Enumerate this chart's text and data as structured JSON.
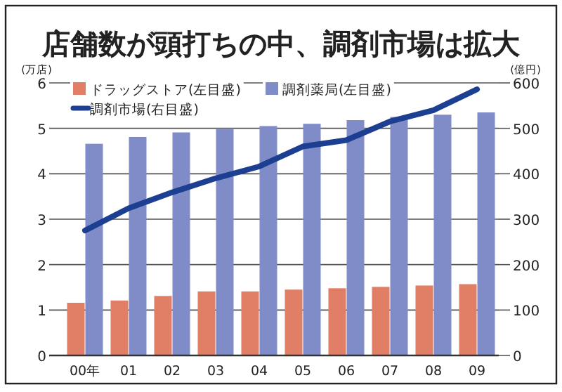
{
  "chart_data": {
    "type": "bar",
    "title": "店舗数が頭打ちの中、調剤市場は拡大",
    "ylabel": "(万店)",
    "y2label": "(億円)",
    "categories": [
      "00年",
      "01",
      "02",
      "03",
      "04",
      "05",
      "06",
      "07",
      "08",
      "09"
    ],
    "series": [
      {
        "name": "ドラッグストア(左目盛)",
        "color": "#e07f66",
        "values": [
          1.16,
          1.21,
          1.31,
          1.41,
          1.41,
          1.45,
          1.48,
          1.51,
          1.54,
          1.57
        ]
      },
      {
        "name": "調剤薬局(左目盛)",
        "color": "#7f8cc7",
        "values": [
          4.66,
          4.81,
          4.91,
          4.98,
          5.05,
          5.1,
          5.18,
          5.25,
          5.3,
          5.35
        ]
      },
      {
        "name": "調剤市場(右目盛)",
        "type": "line",
        "axis": "y2",
        "color": "#1d3f91",
        "values": [
          275,
          324,
          359,
          390,
          416,
          460,
          474,
          515,
          540,
          586
        ]
      }
    ],
    "ylim": [
      0,
      6
    ],
    "yticks": [
      0,
      1,
      2,
      3,
      4,
      5,
      6
    ],
    "y2lim": [
      0,
      600
    ],
    "y2ticks": [
      0,
      100,
      200,
      300,
      400,
      500,
      600
    ],
    "grid": "y",
    "legend": "top left"
  }
}
